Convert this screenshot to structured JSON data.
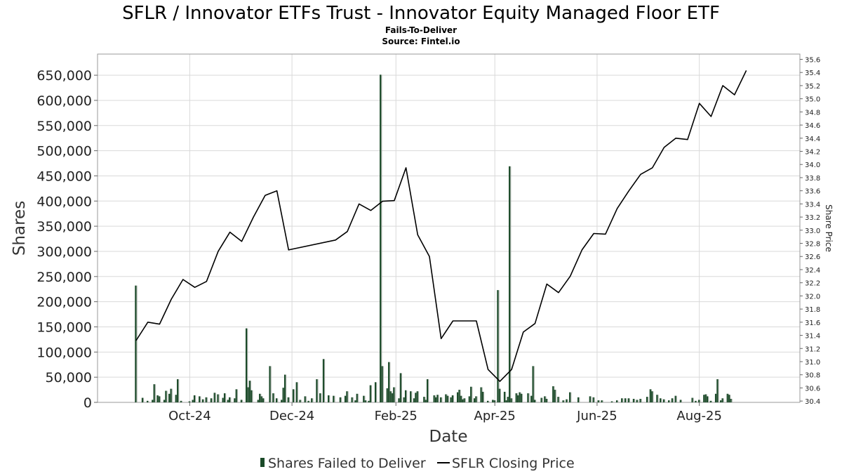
{
  "chart_data": {
    "type": "bar",
    "title": "SFLR / Innovator ETFs Trust - Innovator Equity Managed Floor ETF",
    "subtitle_lines": [
      "Fails-To-Deliver",
      "Source: Fintel.io"
    ],
    "xlabel": "Date",
    "ylabel": "Shares",
    "y2label": "Share Price",
    "x_ticks": [
      {
        "label": "Oct-24",
        "date": "2024-10-01"
      },
      {
        "label": "Dec-24",
        "date": "2024-12-01"
      },
      {
        "label": "Feb-25",
        "date": "2025-02-01"
      },
      {
        "label": "Apr-25",
        "date": "2025-04-01"
      },
      {
        "label": "Jun-25",
        "date": "2025-06-01"
      },
      {
        "label": "Aug-25",
        "date": "2025-08-01"
      }
    ],
    "xlim": [
      "2024-08-07",
      "2025-09-30"
    ],
    "y_ticks": [
      "0",
      "50,000",
      "100,000",
      "150,000",
      "200,000",
      "250,000",
      "300,000",
      "350,000",
      "400,000",
      "450,000",
      "500,000",
      "550,000",
      "600,000",
      "650,000"
    ],
    "y_tick_values": [
      0,
      50000,
      100000,
      150000,
      200000,
      250000,
      300000,
      350000,
      400000,
      450000,
      500000,
      550000,
      600000,
      650000
    ],
    "ylim": [
      0,
      692000
    ],
    "y2_ticks": [
      "30.4",
      "30.6",
      "30.8",
      "31.0",
      "31.2",
      "31.4",
      "31.6",
      "31.8",
      "32.0",
      "32.2",
      "32.4",
      "32.6",
      "32.8",
      "33.0",
      "33.2",
      "33.4",
      "33.6",
      "33.8",
      "34.0",
      "34.2",
      "34.4",
      "34.6",
      "34.8",
      "35.0",
      "35.2",
      "35.4",
      "35.6"
    ],
    "y2_tick_values": [
      30.4,
      30.6,
      30.8,
      31.0,
      31.2,
      31.4,
      31.6,
      31.8,
      32.0,
      32.2,
      32.4,
      32.6,
      32.8,
      33.0,
      33.2,
      33.4,
      33.6,
      33.8,
      34.0,
      34.2,
      34.4,
      34.6,
      34.8,
      35.0,
      35.2,
      35.4,
      35.6
    ],
    "y2lim": [
      30.38,
      35.68
    ],
    "grid": true,
    "legend_position": "bottom-center",
    "series": [
      {
        "name": "Shares Failed to Deliver",
        "kind": "bar",
        "color": "#1a4a28",
        "points": [
          {
            "x": "2024-08-30",
            "y": 232000
          },
          {
            "x": "2024-09-03",
            "y": 9000
          },
          {
            "x": "2024-09-06",
            "y": 3000
          },
          {
            "x": "2024-09-09",
            "y": 5000
          },
          {
            "x": "2024-09-10",
            "y": 36000
          },
          {
            "x": "2024-09-12",
            "y": 14000
          },
          {
            "x": "2024-09-13",
            "y": 12000
          },
          {
            "x": "2024-09-16",
            "y": 5000
          },
          {
            "x": "2024-09-17",
            "y": 23000
          },
          {
            "x": "2024-09-19",
            "y": 17000
          },
          {
            "x": "2024-09-20",
            "y": 27000
          },
          {
            "x": "2024-09-23",
            "y": 15000
          },
          {
            "x": "2024-09-24",
            "y": 46000
          },
          {
            "x": "2024-09-26",
            "y": 3000
          },
          {
            "x": "2024-10-01",
            "y": 2000
          },
          {
            "x": "2024-10-03",
            "y": 5000
          },
          {
            "x": "2024-10-04",
            "y": 14000
          },
          {
            "x": "2024-10-07",
            "y": 12000
          },
          {
            "x": "2024-10-09",
            "y": 6000
          },
          {
            "x": "2024-10-11",
            "y": 10000
          },
          {
            "x": "2024-10-14",
            "y": 8000
          },
          {
            "x": "2024-10-16",
            "y": 19000
          },
          {
            "x": "2024-10-18",
            "y": 16000
          },
          {
            "x": "2024-10-21",
            "y": 9000
          },
          {
            "x": "2024-10-22",
            "y": 18000
          },
          {
            "x": "2024-10-24",
            "y": 5000
          },
          {
            "x": "2024-10-25",
            "y": 10000
          },
          {
            "x": "2024-10-28",
            "y": 8000
          },
          {
            "x": "2024-10-29",
            "y": 26000
          },
          {
            "x": "2024-11-01",
            "y": 5000
          },
          {
            "x": "2024-11-04",
            "y": 147000
          },
          {
            "x": "2024-11-05",
            "y": 30000
          },
          {
            "x": "2024-11-06",
            "y": 43000
          },
          {
            "x": "2024-11-07",
            "y": 24000
          },
          {
            "x": "2024-11-11",
            "y": 5000
          },
          {
            "x": "2024-11-12",
            "y": 17000
          },
          {
            "x": "2024-11-13",
            "y": 12000
          },
          {
            "x": "2024-11-14",
            "y": 8000
          },
          {
            "x": "2024-11-18",
            "y": 72000
          },
          {
            "x": "2024-11-20",
            "y": 18000
          },
          {
            "x": "2024-11-22",
            "y": 8000
          },
          {
            "x": "2024-11-25",
            "y": 5000
          },
          {
            "x": "2024-11-26",
            "y": 29000
          },
          {
            "x": "2024-11-27",
            "y": 55000
          },
          {
            "x": "2024-11-29",
            "y": 10000
          },
          {
            "x": "2024-12-02",
            "y": 26000
          },
          {
            "x": "2024-12-04",
            "y": 40000
          },
          {
            "x": "2024-12-06",
            "y": 5000
          },
          {
            "x": "2024-12-09",
            "y": 12000
          },
          {
            "x": "2024-12-11",
            "y": 3000
          },
          {
            "x": "2024-12-13",
            "y": 8000
          },
          {
            "x": "2024-12-16",
            "y": 46000
          },
          {
            "x": "2024-12-18",
            "y": 18000
          },
          {
            "x": "2024-12-20",
            "y": 86000
          },
          {
            "x": "2024-12-23",
            "y": 14000
          },
          {
            "x": "2024-12-26",
            "y": 13000
          },
          {
            "x": "2024-12-30",
            "y": 10000
          },
          {
            "x": "2025-01-02",
            "y": 13000
          },
          {
            "x": "2025-01-03",
            "y": 22000
          },
          {
            "x": "2025-01-06",
            "y": 10000
          },
          {
            "x": "2025-01-08",
            "y": 4000
          },
          {
            "x": "2025-01-09",
            "y": 17000
          },
          {
            "x": "2025-01-13",
            "y": 13000
          },
          {
            "x": "2025-01-14",
            "y": 4000
          },
          {
            "x": "2025-01-16",
            "y": 3000
          },
          {
            "x": "2025-01-17",
            "y": 34000
          },
          {
            "x": "2025-01-20",
            "y": 40000
          },
          {
            "x": "2025-01-23",
            "y": 651000
          },
          {
            "x": "2025-01-24",
            "y": 72000
          },
          {
            "x": "2025-01-27",
            "y": 28000
          },
          {
            "x": "2025-01-28",
            "y": 80000
          },
          {
            "x": "2025-01-29",
            "y": 22000
          },
          {
            "x": "2025-01-30",
            "y": 18000
          },
          {
            "x": "2025-01-31",
            "y": 30000
          },
          {
            "x": "2025-02-03",
            "y": 8000
          },
          {
            "x": "2025-02-04",
            "y": 58000
          },
          {
            "x": "2025-02-06",
            "y": 10000
          },
          {
            "x": "2025-02-07",
            "y": 24000
          },
          {
            "x": "2025-02-10",
            "y": 22000
          },
          {
            "x": "2025-02-12",
            "y": 8000
          },
          {
            "x": "2025-02-13",
            "y": 19000
          },
          {
            "x": "2025-02-14",
            "y": 22000
          },
          {
            "x": "2025-02-18",
            "y": 11000
          },
          {
            "x": "2025-02-19",
            "y": 5000
          },
          {
            "x": "2025-02-20",
            "y": 46000
          },
          {
            "x": "2025-02-24",
            "y": 14000
          },
          {
            "x": "2025-02-25",
            "y": 10000
          },
          {
            "x": "2025-02-26",
            "y": 15000
          },
          {
            "x": "2025-02-28",
            "y": 10000
          },
          {
            "x": "2025-03-03",
            "y": 16000
          },
          {
            "x": "2025-03-04",
            "y": 13000
          },
          {
            "x": "2025-03-06",
            "y": 10000
          },
          {
            "x": "2025-03-07",
            "y": 14000
          },
          {
            "x": "2025-03-10",
            "y": 20000
          },
          {
            "x": "2025-03-11",
            "y": 25000
          },
          {
            "x": "2025-03-12",
            "y": 13000
          },
          {
            "x": "2025-03-13",
            "y": 6000
          },
          {
            "x": "2025-03-14",
            "y": 8000
          },
          {
            "x": "2025-03-17",
            "y": 12000
          },
          {
            "x": "2025-03-18",
            "y": 31000
          },
          {
            "x": "2025-03-20",
            "y": 8000
          },
          {
            "x": "2025-03-21",
            "y": 12000
          },
          {
            "x": "2025-03-24",
            "y": 30000
          },
          {
            "x": "2025-03-25",
            "y": 21000
          },
          {
            "x": "2025-03-28",
            "y": 3000
          },
          {
            "x": "2025-03-31",
            "y": 5000
          },
          {
            "x": "2025-04-01",
            "y": 4000
          },
          {
            "x": "2025-04-03",
            "y": 223000
          },
          {
            "x": "2025-04-04",
            "y": 27000
          },
          {
            "x": "2025-04-07",
            "y": 21000
          },
          {
            "x": "2025-04-08",
            "y": 4000
          },
          {
            "x": "2025-04-09",
            "y": 11000
          },
          {
            "x": "2025-04-10",
            "y": 469000
          },
          {
            "x": "2025-04-11",
            "y": 8000
          },
          {
            "x": "2025-04-14",
            "y": 18000
          },
          {
            "x": "2025-04-15",
            "y": 14000
          },
          {
            "x": "2025-04-16",
            "y": 20000
          },
          {
            "x": "2025-04-17",
            "y": 17000
          },
          {
            "x": "2025-04-21",
            "y": 18000
          },
          {
            "x": "2025-04-23",
            "y": 13000
          },
          {
            "x": "2025-04-24",
            "y": 72000
          },
          {
            "x": "2025-04-25",
            "y": 5000
          },
          {
            "x": "2025-04-29",
            "y": 9000
          },
          {
            "x": "2025-05-01",
            "y": 12000
          },
          {
            "x": "2025-05-02",
            "y": 7000
          },
          {
            "x": "2025-05-06",
            "y": 32000
          },
          {
            "x": "2025-05-07",
            "y": 25000
          },
          {
            "x": "2025-05-09",
            "y": 11000
          },
          {
            "x": "2025-05-12",
            "y": 4000
          },
          {
            "x": "2025-05-14",
            "y": 6000
          },
          {
            "x": "2025-05-16",
            "y": 20000
          },
          {
            "x": "2025-05-21",
            "y": 10000
          },
          {
            "x": "2025-05-28",
            "y": 12000
          },
          {
            "x": "2025-05-30",
            "y": 10000
          },
          {
            "x": "2025-06-02",
            "y": 4000
          },
          {
            "x": "2025-06-04",
            "y": 4000
          },
          {
            "x": "2025-06-10",
            "y": 2000
          },
          {
            "x": "2025-06-13",
            "y": 4000
          },
          {
            "x": "2025-06-16",
            "y": 8000
          },
          {
            "x": "2025-06-18",
            "y": 8000
          },
          {
            "x": "2025-06-20",
            "y": 8000
          },
          {
            "x": "2025-06-23",
            "y": 7000
          },
          {
            "x": "2025-06-25",
            "y": 5000
          },
          {
            "x": "2025-06-27",
            "y": 7000
          },
          {
            "x": "2025-07-01",
            "y": 11000
          },
          {
            "x": "2025-07-03",
            "y": 26000
          },
          {
            "x": "2025-07-04",
            "y": 22000
          },
          {
            "x": "2025-07-07",
            "y": 15000
          },
          {
            "x": "2025-07-09",
            "y": 8000
          },
          {
            "x": "2025-07-11",
            "y": 6000
          },
          {
            "x": "2025-07-14",
            "y": 4000
          },
          {
            "x": "2025-07-16",
            "y": 8000
          },
          {
            "x": "2025-07-18",
            "y": 13000
          },
          {
            "x": "2025-07-21",
            "y": 5000
          },
          {
            "x": "2025-07-28",
            "y": 9000
          },
          {
            "x": "2025-07-30",
            "y": 3000
          },
          {
            "x": "2025-08-01",
            "y": 5000
          },
          {
            "x": "2025-08-04",
            "y": 15000
          },
          {
            "x": "2025-08-05",
            "y": 16000
          },
          {
            "x": "2025-08-06",
            "y": 12000
          },
          {
            "x": "2025-08-08",
            "y": 3000
          },
          {
            "x": "2025-08-11",
            "y": 17000
          },
          {
            "x": "2025-08-12",
            "y": 46000
          },
          {
            "x": "2025-08-14",
            "y": 4000
          },
          {
            "x": "2025-08-15",
            "y": 8000
          },
          {
            "x": "2025-08-18",
            "y": 17000
          },
          {
            "x": "2025-08-19",
            "y": 15000
          },
          {
            "x": "2025-08-20",
            "y": 7000
          }
        ]
      },
      {
        "name": "SFLR Closing Price",
        "kind": "line",
        "color": "#000000",
        "points": [
          {
            "x": "2024-08-30",
            "y": 31.32
          },
          {
            "x": "2024-09-06",
            "y": 31.6
          },
          {
            "x": "2024-09-13",
            "y": 31.57
          },
          {
            "x": "2024-09-20",
            "y": 31.95
          },
          {
            "x": "2024-09-27",
            "y": 32.25
          },
          {
            "x": "2024-10-04",
            "y": 32.13
          },
          {
            "x": "2024-10-11",
            "y": 32.22
          },
          {
            "x": "2024-10-18",
            "y": 32.68
          },
          {
            "x": "2024-10-25",
            "y": 32.97
          },
          {
            "x": "2024-11-01",
            "y": 32.83
          },
          {
            "x": "2024-11-08",
            "y": 33.2
          },
          {
            "x": "2024-11-15",
            "y": 33.53
          },
          {
            "x": "2024-11-22",
            "y": 33.6
          },
          {
            "x": "2024-11-29",
            "y": 32.7
          },
          {
            "x": "2024-12-27",
            "y": 32.85
          },
          {
            "x": "2025-01-03",
            "y": 32.98
          },
          {
            "x": "2025-01-10",
            "y": 33.4
          },
          {
            "x": "2025-01-17",
            "y": 33.3
          },
          {
            "x": "2025-01-24",
            "y": 33.44
          },
          {
            "x": "2025-01-31",
            "y": 33.45
          },
          {
            "x": "2025-02-07",
            "y": 33.95
          },
          {
            "x": "2025-02-14",
            "y": 32.93
          },
          {
            "x": "2025-02-21",
            "y": 32.6
          },
          {
            "x": "2025-02-28",
            "y": 31.35
          },
          {
            "x": "2025-03-07",
            "y": 31.62
          },
          {
            "x": "2025-03-21",
            "y": 31.62
          },
          {
            "x": "2025-03-28",
            "y": 30.88
          },
          {
            "x": "2025-04-04",
            "y": 30.7
          },
          {
            "x": "2025-04-11",
            "y": 30.88
          },
          {
            "x": "2025-04-18",
            "y": 31.45
          },
          {
            "x": "2025-04-25",
            "y": 31.58
          },
          {
            "x": "2025-05-02",
            "y": 32.18
          },
          {
            "x": "2025-05-09",
            "y": 32.05
          },
          {
            "x": "2025-05-16",
            "y": 32.3
          },
          {
            "x": "2025-05-23",
            "y": 32.7
          },
          {
            "x": "2025-05-30",
            "y": 32.95
          },
          {
            "x": "2025-06-06",
            "y": 32.94
          },
          {
            "x": "2025-06-13",
            "y": 33.33
          },
          {
            "x": "2025-06-20",
            "y": 33.6
          },
          {
            "x": "2025-06-27",
            "y": 33.85
          },
          {
            "x": "2025-07-04",
            "y": 33.95
          },
          {
            "x": "2025-07-11",
            "y": 34.26
          },
          {
            "x": "2025-07-18",
            "y": 34.4
          },
          {
            "x": "2025-07-25",
            "y": 34.38
          },
          {
            "x": "2025-08-01",
            "y": 34.93
          },
          {
            "x": "2025-08-08",
            "y": 34.73
          },
          {
            "x": "2025-08-15",
            "y": 35.2
          },
          {
            "x": "2025-08-22",
            "y": 35.06
          },
          {
            "x": "2025-08-29",
            "y": 35.43
          }
        ]
      }
    ]
  }
}
